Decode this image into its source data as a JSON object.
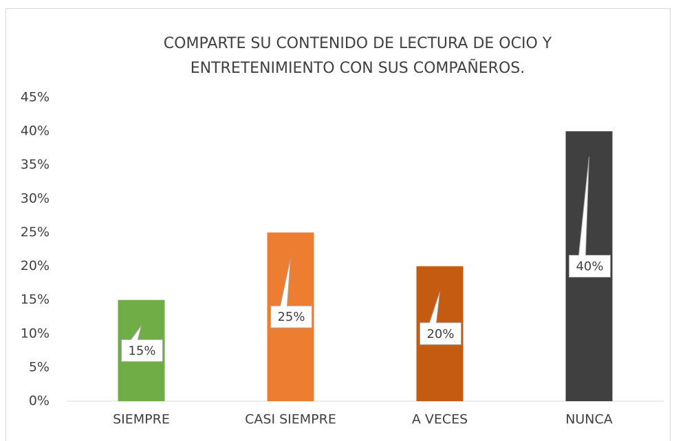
{
  "chart_data": {
    "type": "bar",
    "title": [
      "COMPARTE SU CONTENIDO DE LECTURA DE OCIO Y",
      "ENTRETENIMIENTO CON SUS COMPAÑEROS."
    ],
    "categories": [
      "SIEMPRE",
      "CASI SIEMPRE",
      "A VECES",
      "NUNCA"
    ],
    "values": [
      15,
      25,
      20,
      40
    ],
    "value_labels": [
      "15%",
      "25%",
      "20%",
      "40%"
    ],
    "colors": [
      "#70ad47",
      "#ed7d31",
      "#c55a11",
      "#404040"
    ],
    "ylim": [
      0,
      45
    ],
    "yticks": [
      {
        "value": 0,
        "label": "0%"
      },
      {
        "value": 5,
        "label": "5%"
      },
      {
        "value": 10,
        "label": "10%"
      },
      {
        "value": 15,
        "label": "15%"
      },
      {
        "value": 20,
        "label": "20%"
      },
      {
        "value": 25,
        "label": "25%"
      },
      {
        "value": 30,
        "label": "30%"
      },
      {
        "value": 35,
        "label": "35%"
      },
      {
        "value": 40,
        "label": "40%"
      },
      {
        "value": 45,
        "label": "45%"
      }
    ],
    "grid": false
  }
}
